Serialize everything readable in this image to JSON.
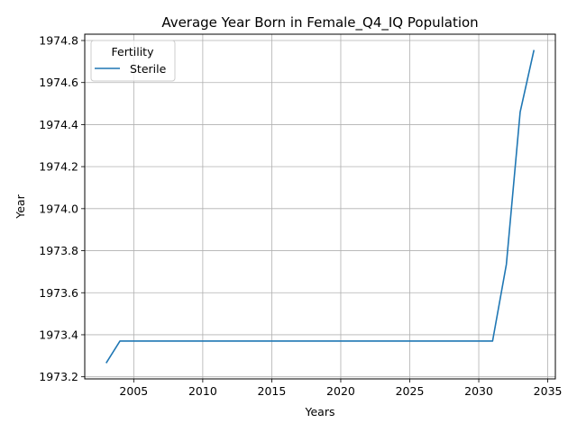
{
  "chart_data": {
    "type": "line",
    "title": "Average Year Born in Female_Q4_IQ Population",
    "xlabel": "Years",
    "ylabel": "Year",
    "xlim": [
      2001.45,
      2035.55
    ],
    "ylim": [
      1973.19,
      1974.83
    ],
    "xticks": [
      2005,
      2010,
      2015,
      2020,
      2025,
      2030,
      2035
    ],
    "yticks": [
      1973.2,
      1973.4,
      1973.6,
      1973.8,
      1974.0,
      1974.2,
      1974.4,
      1974.6,
      1974.8
    ],
    "grid": true,
    "legend": {
      "title": "Fertility",
      "placement": "top-left"
    },
    "series": [
      {
        "name": "Sterile",
        "color": "#1f77b4",
        "x": [
          2003,
          2004,
          2005,
          2006,
          2007,
          2008,
          2009,
          2010,
          2011,
          2012,
          2013,
          2014,
          2015,
          2016,
          2017,
          2018,
          2019,
          2020,
          2021,
          2022,
          2023,
          2024,
          2025,
          2026,
          2027,
          2028,
          2029,
          2030,
          2031,
          2032,
          2033,
          2034
        ],
        "y": [
          1973.265,
          1973.37,
          1973.37,
          1973.37,
          1973.37,
          1973.37,
          1973.37,
          1973.37,
          1973.37,
          1973.37,
          1973.37,
          1973.37,
          1973.37,
          1973.37,
          1973.37,
          1973.37,
          1973.37,
          1973.37,
          1973.37,
          1973.37,
          1973.37,
          1973.37,
          1973.37,
          1973.37,
          1973.37,
          1973.37,
          1973.37,
          1973.37,
          1973.37,
          1973.735,
          1974.46,
          1974.755
        ]
      }
    ]
  }
}
